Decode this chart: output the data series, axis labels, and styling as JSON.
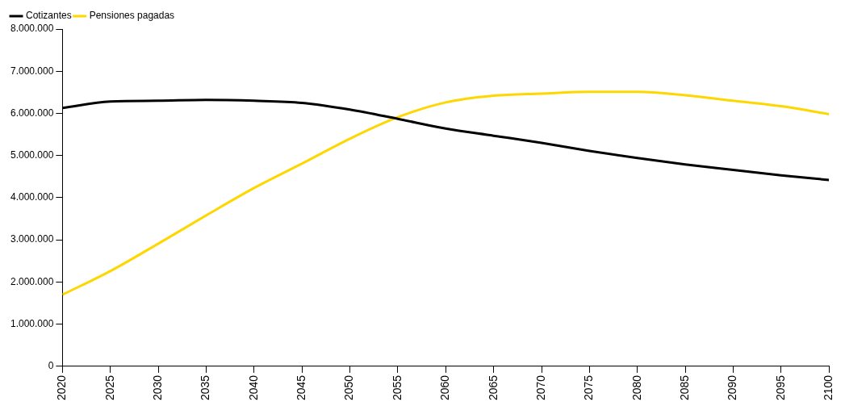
{
  "chart_data": {
    "type": "line",
    "x": [
      2020,
      2025,
      2030,
      2035,
      2040,
      2045,
      2050,
      2055,
      2060,
      2065,
      2070,
      2075,
      2080,
      2085,
      2090,
      2095,
      2100
    ],
    "series": [
      {
        "name": "Cotizantes",
        "color": "#000000",
        "values": [
          6130000,
          6280000,
          6300000,
          6320000,
          6300000,
          6250000,
          6090000,
          5870000,
          5640000,
          5470000,
          5300000,
          5110000,
          4940000,
          4790000,
          4660000,
          4530000,
          4420000
        ]
      },
      {
        "name": "Pensiones pagadas",
        "color": "#ffd700",
        "values": [
          1700000,
          2260000,
          2910000,
          3580000,
          4230000,
          4810000,
          5400000,
          5910000,
          6260000,
          6420000,
          6470000,
          6510000,
          6510000,
          6430000,
          6300000,
          6170000,
          5980000
        ]
      }
    ],
    "xlim": [
      2020,
      2100
    ],
    "xticks": [
      2020,
      2025,
      2030,
      2035,
      2040,
      2045,
      2050,
      2055,
      2060,
      2065,
      2070,
      2075,
      2080,
      2085,
      2090,
      2095,
      2100
    ],
    "ylim": [
      0,
      8000000
    ],
    "yticks": [
      {
        "value": 0,
        "label": "0"
      },
      {
        "value": 1000000,
        "label": "1.000.000"
      },
      {
        "value": 2000000,
        "label": "2.000.000"
      },
      {
        "value": 3000000,
        "label": "3.000.000"
      },
      {
        "value": 4000000,
        "label": "4.000.000"
      },
      {
        "value": 5000000,
        "label": "5.000.000"
      },
      {
        "value": 6000000,
        "label": "6.000.000"
      },
      {
        "value": 7000000,
        "label": "7.000.000"
      },
      {
        "value": 8000000,
        "label": "8.000.000"
      }
    ],
    "grid": false,
    "legend": "top left",
    "marker": "none",
    "line_style": "solid"
  }
}
